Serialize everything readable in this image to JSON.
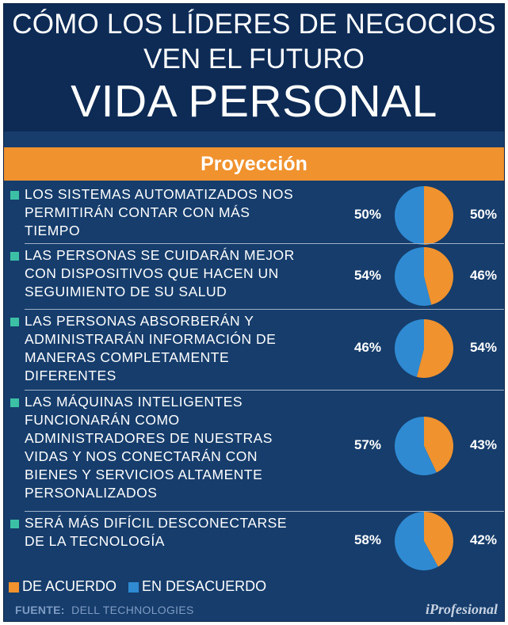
{
  "header": {
    "line1": "CÓMO LOS LÍDERES DE NEGOCIOS",
    "line2": "VEN EL FUTURO",
    "line3": "VIDA PERSONAL"
  },
  "band_label": "Proyección",
  "colors": {
    "agree": "#f0922e",
    "disagree": "#2f8ad2",
    "bullet": "#3cc0a5",
    "panel": "#163d6c",
    "header": "#0d2b55"
  },
  "chart_data": {
    "type": "pie",
    "title": "CÓMO LOS LÍDERES DE NEGOCIOS VEN EL FUTURO — VIDA PERSONAL",
    "subtitle": "Proyección",
    "series_names": [
      "DE ACUERDO",
      "EN DESACUERDO"
    ],
    "items": [
      {
        "lines": [
          "LOS SISTEMAS AUTOMATIZADOS NOS",
          "PERMITIRÁN CONTAR CON MÁS",
          "TIEMPO"
        ],
        "disagree": 50,
        "agree": 50,
        "disagree_label": "50%",
        "agree_label": "50%"
      },
      {
        "lines": [
          "LAS PERSONAS SE CUIDARÁN MEJOR",
          "CON DISPOSITIVOS QUE HACEN UN",
          "SEGUIMIENTO DE SU SALUD"
        ],
        "disagree": 54,
        "agree": 46,
        "disagree_label": "54%",
        "agree_label": "46%"
      },
      {
        "lines": [
          "LAS PERSONAS ABSORBERÁN Y",
          "ADMINISTRARÁN INFORMACIÓN DE",
          "MANERAS COMPLETAMENTE",
          "DIFERENTES"
        ],
        "disagree": 46,
        "agree": 54,
        "disagree_label": "46%",
        "agree_label": "54%"
      },
      {
        "lines": [
          "LAS MÁQUINAS INTELIGENTES",
          "FUNCIONARÁN COMO",
          "ADMINISTRADORES DE NUESTRAS",
          "VIDAS Y NOS CONECTARÁN CON",
          "BIENES Y SERVICIOS ALTAMENTE",
          "PERSONALIZADOS"
        ],
        "disagree": 57,
        "agree": 43,
        "disagree_label": "57%",
        "agree_label": "43%"
      },
      {
        "lines": [
          "SERÁ MÁS DIFÍCIL DESCONECTARSE",
          "DE LA TECNOLOGÍA"
        ],
        "disagree": 58,
        "agree": 42,
        "disagree_label": "58%",
        "agree_label": "42%"
      }
    ]
  },
  "legend": {
    "agree": "DE ACUERDO",
    "disagree": "EN DESACUERDO"
  },
  "source": {
    "label": "FUENTE:",
    "value": "DELL TECHNOLOGIES"
  },
  "brand": "iProfesional"
}
